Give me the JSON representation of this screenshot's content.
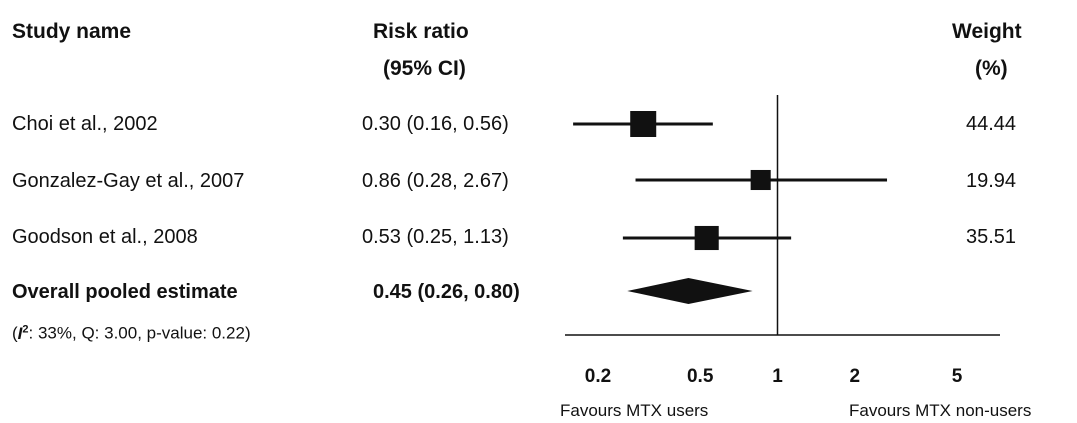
{
  "chart_data": {
    "type": "forest",
    "columns": {
      "study": "Study name",
      "effect_line1": "Risk ratio",
      "effect_line2": "(95% CI)",
      "weight_line1": "Weight",
      "weight_line2": "(%)"
    },
    "studies": [
      {
        "name": "Choi et al., 2002",
        "ci_text": "0.30 (0.16, 0.56)",
        "rr": 0.3,
        "lo": 0.16,
        "hi": 0.56,
        "weight_text": "44.44",
        "weight": 44.44
      },
      {
        "name": "Gonzalez-Gay et al., 2007",
        "ci_text": "0.86 (0.28, 2.67)",
        "rr": 0.86,
        "lo": 0.28,
        "hi": 2.67,
        "weight_text": "19.94",
        "weight": 19.94
      },
      {
        "name": "Goodson et al., 2008",
        "ci_text": "0.53 (0.25, 1.13)",
        "rr": 0.53,
        "lo": 0.25,
        "hi": 1.13,
        "weight_text": "35.51",
        "weight": 35.51
      }
    ],
    "pooled": {
      "name": "Overall pooled estimate",
      "ci_text": "0.45 (0.26, 0.80)",
      "rr": 0.45,
      "lo": 0.26,
      "hi": 0.8,
      "heterogeneity_i": "I",
      "heterogeneity_sup": "2",
      "heterogeneity_rest": ": 33%, Q: 3.00, p-value: 0.22)",
      "heterogeneity_open": "("
    },
    "x_scale": "log",
    "xlim": [
      0.2,
      5
    ],
    "reference_line": 1,
    "ticks": [
      {
        "value": 0.2,
        "label": "0.2"
      },
      {
        "value": 0.5,
        "label": "0.5"
      },
      {
        "value": 1,
        "label": "1"
      },
      {
        "value": 2,
        "label": "2"
      },
      {
        "value": 5,
        "label": "5"
      }
    ],
    "left_caption": "Favours MTX users",
    "right_caption": "Favours MTX non-users",
    "color": "#111111"
  }
}
